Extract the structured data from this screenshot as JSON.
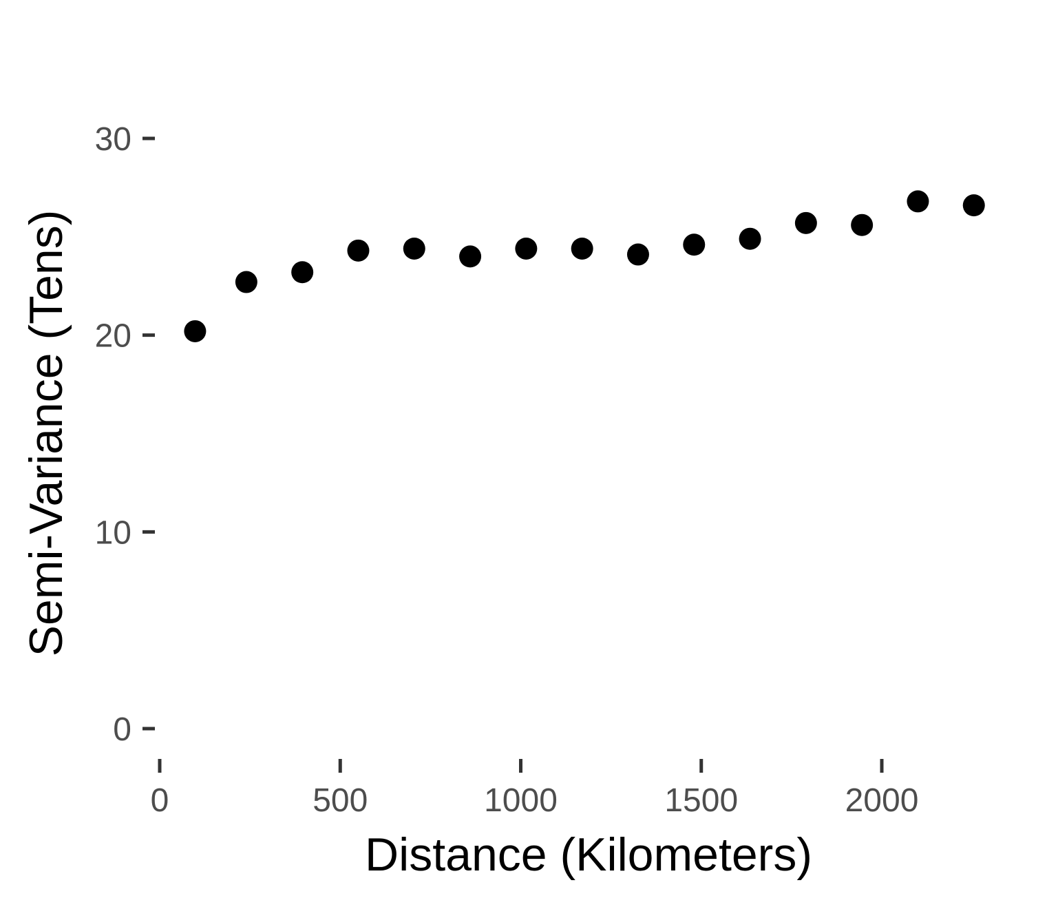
{
  "chart_data": {
    "type": "scatter",
    "title": "",
    "xlabel": "Distance (Kilometers)",
    "ylabel": "Semi-Variance (Tens)",
    "xlim": [
      0,
      2300
    ],
    "ylim": [
      0,
      30
    ],
    "x_ticks": [
      0,
      500,
      1000,
      1500,
      2000
    ],
    "x_tick_labels": [
      "0",
      "500",
      "1000",
      "1500",
      "2000"
    ],
    "y_ticks": [
      0,
      10,
      20,
      30
    ],
    "y_tick_labels": [
      "0",
      "10",
      "20",
      "30"
    ],
    "grid": false,
    "legend": "none",
    "point_color": "#000000",
    "points": [
      {
        "x": 98,
        "y": 20.2
      },
      {
        "x": 240,
        "y": 22.7
      },
      {
        "x": 395,
        "y": 23.2
      },
      {
        "x": 550,
        "y": 24.3
      },
      {
        "x": 705,
        "y": 24.4
      },
      {
        "x": 860,
        "y": 24.0
      },
      {
        "x": 1015,
        "y": 24.4
      },
      {
        "x": 1170,
        "y": 24.4
      },
      {
        "x": 1325,
        "y": 24.1
      },
      {
        "x": 1480,
        "y": 24.6
      },
      {
        "x": 1635,
        "y": 24.9
      },
      {
        "x": 1790,
        "y": 25.7
      },
      {
        "x": 1945,
        "y": 25.6
      },
      {
        "x": 2100,
        "y": 26.8
      },
      {
        "x": 2255,
        "y": 26.6
      }
    ]
  }
}
